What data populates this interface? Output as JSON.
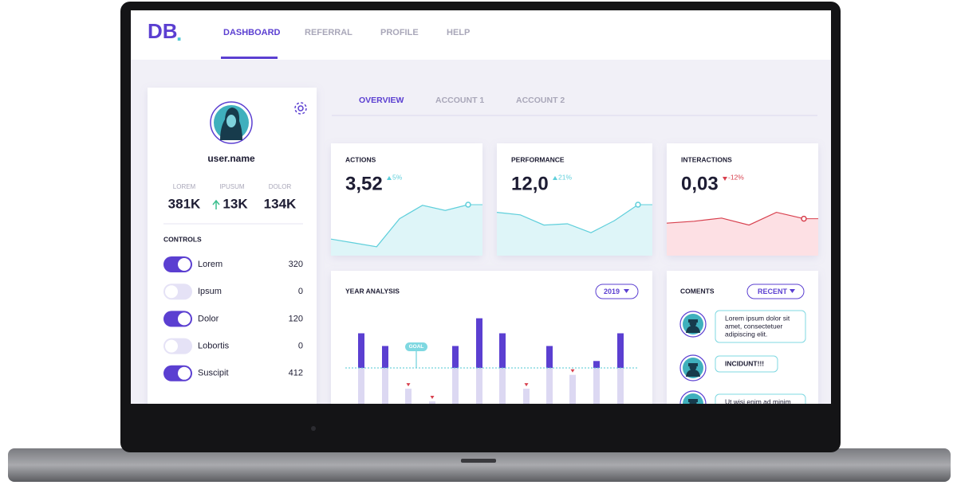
{
  "logo": "DB",
  "logo_dot": ".",
  "nav": [
    "DASHBOARD",
    "REFERRAL",
    "PROFILE",
    "HELP"
  ],
  "profile": {
    "username": "user.name",
    "stats": [
      {
        "label": "LOREM",
        "value": "381K"
      },
      {
        "label": "IPUSUM",
        "value": "13K"
      },
      {
        "label": "DOLOR",
        "value": "134K"
      }
    ],
    "controls_title": "CONTROLS",
    "controls": [
      {
        "label": "Lorem",
        "value": 320,
        "on": true
      },
      {
        "label": "Ipsum",
        "value": 0,
        "on": false
      },
      {
        "label": "Dolor",
        "value": 120,
        "on": true
      },
      {
        "label": "Lobortis",
        "value": 0,
        "on": false
      },
      {
        "label": "Suscipit",
        "value": 412,
        "on": true
      }
    ]
  },
  "tabs": [
    "OVERVIEW",
    "ACCOUNT 1",
    "ACCOUNT 2"
  ],
  "cards": [
    {
      "title": "ACTIONS",
      "value": "3,52",
      "change": "5%",
      "up": true,
      "color": "#5fcfdb",
      "fill": "#def5f8",
      "trend": [
        26,
        20,
        14,
        58,
        79,
        71,
        80
      ]
    },
    {
      "title": "PERFORMANCE",
      "value": "12,0",
      "change": "21%",
      "up": true,
      "color": "#5fcfdb",
      "fill": "#def5f8",
      "trend": [
        68,
        64,
        48,
        50,
        36,
        55,
        80
      ]
    },
    {
      "title": "INTERACTIONS",
      "value": "0,03",
      "change": "-12%",
      "up": false,
      "color": "#d8404e",
      "fill": "#fde0e4",
      "trend": [
        51,
        54,
        59,
        48,
        68,
        58
      ]
    }
  ],
  "year_chart": {
    "title": "YEAR ANALYSIS",
    "filter": "2019",
    "goal_label": "GOAL",
    "goal": 40,
    "ylim": [
      0,
      100
    ],
    "values": [
      70,
      59,
      22,
      11,
      59,
      83,
      70,
      22,
      59,
      34,
      46,
      70
    ],
    "above_color": "#5b3fd1",
    "below_color": "#dcd8f2",
    "miss_color": "#d8404e"
  },
  "comments": {
    "title": "COMENTS",
    "filter": "RECENT",
    "items": [
      {
        "lines": [
          "Lorem ipsum dolor sit",
          "amet, consectetuer",
          "adipiscing elit."
        ]
      },
      {
        "lines": [
          "INCIDUNT!!!"
        ]
      },
      {
        "lines": [
          "Ut wisi enim ad minim"
        ]
      }
    ]
  }
}
